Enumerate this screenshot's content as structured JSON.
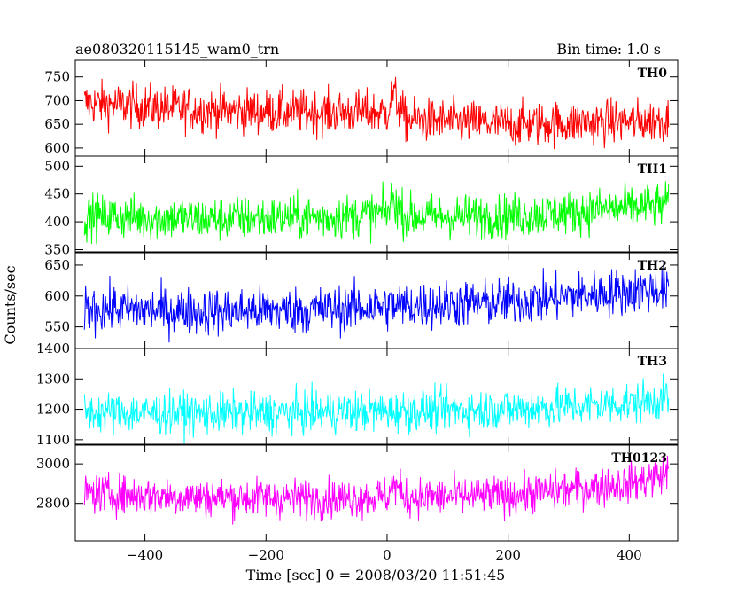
{
  "header": {
    "title": "ae080320115145_wam0_trn",
    "bin_time": "Bin time: 1.0 s"
  },
  "chart_data": {
    "type": "line",
    "xlabel": "Time [sec] 0 = 2008/03/20 11:51:45",
    "ylabel": "Counts/sec",
    "xlim": [
      -515,
      480
    ],
    "xticks": [
      -400,
      -200,
      0,
      200,
      400
    ],
    "x_range": [
      -500,
      465
    ],
    "panels": [
      {
        "name": "TH0",
        "color": "#ff0000",
        "ylim": [
          583,
          785
        ],
        "yticks": [
          600,
          650,
          700,
          750
        ],
        "level_points": [
          [
            -500,
            695
          ],
          [
            -300,
            680
          ],
          [
            -100,
            675
          ],
          [
            0,
            675
          ],
          [
            10,
            715
          ],
          [
            30,
            660
          ],
          [
            200,
            650
          ],
          [
            400,
            655
          ],
          [
            465,
            660
          ]
        ],
        "noise": 33
      },
      {
        "name": "TH1",
        "color": "#00ff00",
        "ylim": [
          346,
          518
        ],
        "yticks": [
          350,
          400,
          450,
          500
        ],
        "level_points": [
          [
            -500,
            410
          ],
          [
            -300,
            405
          ],
          [
            -100,
            408
          ],
          [
            0,
            415
          ],
          [
            10,
            440
          ],
          [
            30,
            410
          ],
          [
            200,
            410
          ],
          [
            400,
            425
          ],
          [
            465,
            430
          ]
        ],
        "noise": 28
      },
      {
        "name": "TH2",
        "color": "#0000ff",
        "ylim": [
          515,
          670
        ],
        "yticks": [
          550,
          600,
          650
        ],
        "level_points": [
          [
            -500,
            580
          ],
          [
            -300,
            575
          ],
          [
            -100,
            578
          ],
          [
            0,
            583
          ],
          [
            200,
            590
          ],
          [
            400,
            608
          ],
          [
            465,
            612
          ]
        ],
        "noise": 27
      },
      {
        "name": "TH3",
        "color": "#00ffff",
        "ylim": [
          1085,
          1400
        ],
        "yticks": [
          1100,
          1200,
          1300,
          1400
        ],
        "level_points": [
          [
            -500,
            1190
          ],
          [
            -300,
            1185
          ],
          [
            -100,
            1190
          ],
          [
            0,
            1195
          ],
          [
            200,
            1200
          ],
          [
            400,
            1220
          ],
          [
            465,
            1235
          ]
        ],
        "noise": 48
      },
      {
        "name": "TH0123",
        "color": "#ff00ff",
        "ylim": [
          2610,
          3095
        ],
        "yticks": [
          2800,
          3000
        ],
        "level_points": [
          [
            -500,
            2850
          ],
          [
            -300,
            2830
          ],
          [
            -100,
            2825
          ],
          [
            0,
            2835
          ],
          [
            10,
            2900
          ],
          [
            30,
            2830
          ],
          [
            200,
            2840
          ],
          [
            400,
            2900
          ],
          [
            465,
            2950
          ]
        ],
        "noise": 70
      }
    ]
  }
}
